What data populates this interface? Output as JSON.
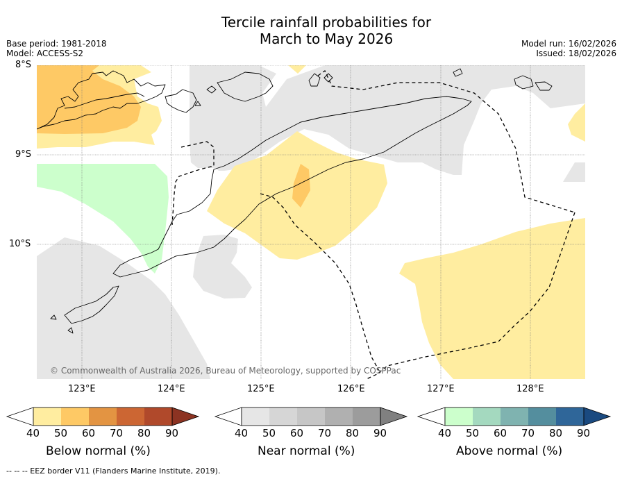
{
  "title": {
    "line1": "Tercile rainfall probabilities for",
    "line2": "March to May 2026"
  },
  "meta_left": {
    "base_period": "Base period: 1981-2018",
    "model": "Model: ACCESS-S2"
  },
  "meta_right": {
    "model_run": "Model run: 16/02/2026",
    "issued": "Issued: 18/02/2026"
  },
  "lat_labels": [
    "8°S",
    "9°S",
    "10°S"
  ],
  "lon_labels": [
    "123°E",
    "124°E",
    "125°E",
    "126°E",
    "127°E",
    "128°E"
  ],
  "copyright": "© Commonwealth of Australia 2026, Bureau of Meteorology, supported by COSPPac",
  "colors": {
    "below": [
      "#ffeda0",
      "#fec965",
      "#e39442",
      "#cc6633",
      "#b0492b",
      "#8c3322"
    ],
    "near": [
      "#e6e6e6",
      "#d6d6d6",
      "#c6c6c6",
      "#b0b0b0",
      "#9c9c9c",
      "#808080"
    ],
    "above": [
      "#ccffcc",
      "#a4d9bf",
      "#7fb3b0",
      "#548e9e",
      "#2f6699",
      "#1a4a80"
    ]
  },
  "legends": [
    {
      "category": "below",
      "label": "Below normal (%)",
      "ticks": [
        "40",
        "50",
        "60",
        "70",
        "80",
        "90"
      ]
    },
    {
      "category": "near",
      "label": "Near normal (%)",
      "ticks": [
        "40",
        "50",
        "60",
        "70",
        "80",
        "90"
      ]
    },
    {
      "category": "above",
      "label": "Above normal (%)",
      "ticks": [
        "40",
        "50",
        "60",
        "70",
        "80",
        "90"
      ]
    }
  ],
  "footer": "--  --  -- EEZ border V11 (Flanders Marine Institute, 2019)."
}
